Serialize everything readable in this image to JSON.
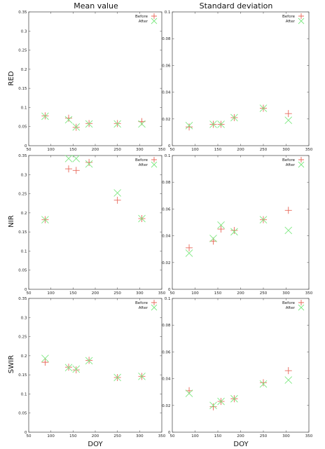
{
  "column_titles": [
    "Mean value",
    "Standard deviation"
  ],
  "row_labels": [
    "RED",
    "NIR",
    "SWIR"
  ],
  "xlabel": "DOY",
  "legend": {
    "before": "Before",
    "after": "After"
  },
  "colors": {
    "before": "#e8685a",
    "after": "#7ee882",
    "axis": "#555555"
  },
  "chart_data": [
    {
      "type": "scatter",
      "row": "RED",
      "column": "Mean value",
      "xlim": [
        50,
        350
      ],
      "ylim": [
        0,
        0.35
      ],
      "xticks": [
        50,
        100,
        150,
        200,
        250,
        300,
        350
      ],
      "yticks": [
        0,
        0.05,
        0.1,
        0.15,
        0.2,
        0.25,
        0.3,
        0.35
      ],
      "series": [
        {
          "name": "Before",
          "marker": "plus",
          "x": [
            87,
            140,
            157,
            186,
            250,
            305
          ],
          "y": [
            0.078,
            0.072,
            0.048,
            0.058,
            0.058,
            0.063
          ]
        },
        {
          "name": "After",
          "marker": "x",
          "x": [
            87,
            140,
            157,
            186,
            250,
            305
          ],
          "y": [
            0.077,
            0.068,
            0.049,
            0.057,
            0.057,
            0.057
          ]
        }
      ]
    },
    {
      "type": "scatter",
      "row": "RED",
      "column": "Standard deviation",
      "xlim": [
        50,
        350
      ],
      "ylim": [
        0,
        0.1
      ],
      "xticks": [
        50,
        100,
        150,
        200,
        250,
        300,
        350
      ],
      "yticks": [
        0,
        0.02,
        0.04,
        0.06,
        0.08,
        0.1
      ],
      "series": [
        {
          "name": "Before",
          "marker": "plus",
          "x": [
            87,
            140,
            157,
            186,
            250,
            305
          ],
          "y": [
            0.014,
            0.016,
            0.016,
            0.021,
            0.028,
            0.024
          ]
        },
        {
          "name": "After",
          "marker": "x",
          "x": [
            87,
            140,
            157,
            186,
            250,
            305
          ],
          "y": [
            0.015,
            0.016,
            0.016,
            0.021,
            0.028,
            0.019
          ]
        }
      ]
    },
    {
      "type": "scatter",
      "row": "NIR",
      "column": "Mean value",
      "xlim": [
        50,
        350
      ],
      "ylim": [
        0,
        0.35
      ],
      "xticks": [
        50,
        100,
        150,
        200,
        250,
        300,
        350
      ],
      "yticks": [
        0,
        0.05,
        0.1,
        0.15,
        0.2,
        0.25,
        0.3,
        0.35
      ],
      "series": [
        {
          "name": "Before",
          "marker": "plus",
          "x": [
            87,
            140,
            157,
            186,
            250,
            305
          ],
          "y": [
            0.182,
            0.315,
            0.311,
            0.332,
            0.233,
            0.185
          ]
        },
        {
          "name": "After",
          "marker": "x",
          "x": [
            87,
            140,
            157,
            186,
            250,
            305
          ],
          "y": [
            0.182,
            0.342,
            0.342,
            0.328,
            0.252,
            0.185
          ]
        }
      ]
    },
    {
      "type": "scatter",
      "row": "NIR",
      "column": "Standard deviation",
      "xlim": [
        50,
        350
      ],
      "ylim": [
        0,
        0.1
      ],
      "xticks": [
        50,
        100,
        150,
        200,
        250,
        300,
        350
      ],
      "yticks": [
        0,
        0.02,
        0.04,
        0.06,
        0.08,
        0.1
      ],
      "series": [
        {
          "name": "Before",
          "marker": "plus",
          "x": [
            87,
            140,
            157,
            186,
            250,
            305
          ],
          "y": [
            0.031,
            0.036,
            0.045,
            0.044,
            0.052,
            0.059
          ]
        },
        {
          "name": "After",
          "marker": "x",
          "x": [
            87,
            140,
            157,
            186,
            250,
            305
          ],
          "y": [
            0.027,
            0.038,
            0.048,
            0.043,
            0.052,
            0.044
          ]
        }
      ]
    },
    {
      "type": "scatter",
      "row": "SWIR",
      "column": "Mean value",
      "xlim": [
        50,
        350
      ],
      "ylim": [
        0,
        0.35
      ],
      "xticks": [
        50,
        100,
        150,
        200,
        250,
        300,
        350
      ],
      "yticks": [
        0,
        0.05,
        0.1,
        0.15,
        0.2,
        0.25,
        0.3,
        0.35
      ],
      "series": [
        {
          "name": "Before",
          "marker": "plus",
          "x": [
            87,
            140,
            157,
            186,
            250,
            305
          ],
          "y": [
            0.183,
            0.17,
            0.163,
            0.188,
            0.143,
            0.146
          ]
        },
        {
          "name": "After",
          "marker": "x",
          "x": [
            87,
            140,
            157,
            186,
            250,
            305
          ],
          "y": [
            0.193,
            0.169,
            0.165,
            0.187,
            0.143,
            0.146
          ]
        }
      ]
    },
    {
      "type": "scatter",
      "row": "SWIR",
      "column": "Standard deviation",
      "xlim": [
        50,
        350
      ],
      "ylim": [
        0,
        0.1
      ],
      "xticks": [
        50,
        100,
        150,
        200,
        250,
        300,
        350
      ],
      "yticks": [
        0,
        0.02,
        0.04,
        0.06,
        0.08,
        0.1
      ],
      "series": [
        {
          "name": "Before",
          "marker": "plus",
          "x": [
            87,
            140,
            157,
            186,
            250,
            305
          ],
          "y": [
            0.031,
            0.019,
            0.023,
            0.025,
            0.037,
            0.046
          ]
        },
        {
          "name": "After",
          "marker": "x",
          "x": [
            87,
            140,
            157,
            186,
            250,
            305
          ],
          "y": [
            0.029,
            0.02,
            0.023,
            0.025,
            0.036,
            0.039
          ]
        }
      ]
    }
  ]
}
